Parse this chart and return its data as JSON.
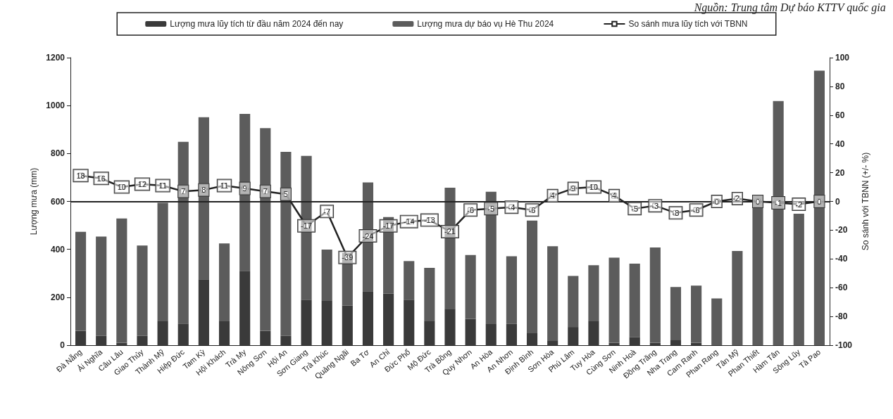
{
  "chart_data": {
    "type": "bar",
    "stacked": true,
    "annotations": [
      "Nguồn: Trung tâm Dự báo KTTV quốc gia"
    ],
    "ylabel": "Lượng mưa (mm)",
    "y2label": "So sánh với TBNN (+/- %)",
    "categories": [
      "Đà Nẵng",
      "Ải Nghĩa",
      "Câu Lâu",
      "Giao Thủy",
      "Thành Mỹ",
      "Hiệp Đức",
      "Tam Kỳ",
      "Hội Khách",
      "Trà My",
      "Nông Sơn",
      "Hội An",
      "Sơn Giang",
      "Trà Khúc",
      "Quảng Ngãi",
      "Ba Tơ",
      "An Chỉ",
      "Đức Phổ",
      "Mộ Đức",
      "Trà Bồng",
      "Quy Nhơn",
      "An Hòa",
      "An Nhơn",
      "Định Bình",
      "Sơn Hòa",
      "Phú Lâm",
      "Tuy Hòa",
      "Cùng Sơn",
      "Ninh Hoà",
      "Đồng Trăng",
      "Nha Trang",
      "Cam Ranh",
      "Phan Rang",
      "Tân Mỹ",
      "Phan Thiết",
      "Hàm Tân",
      "Sông Lũy",
      "Tà Pao"
    ],
    "series": [
      {
        "name": "Lượng mưa lũy tích từ đầu năm 2024 đến nay",
        "color": "#3a3a3a",
        "values": [
          60,
          40,
          10,
          40,
          100,
          90,
          275,
          100,
          310,
          60,
          40,
          190,
          185,
          165,
          225,
          215,
          190,
          100,
          150,
          110,
          88,
          90,
          50,
          20,
          76,
          100,
          10,
          34,
          10,
          23,
          10,
          0,
          0,
          0,
          0,
          0,
          0
        ]
      },
      {
        "name": "Lượng mưa dự báo vụ Hè Thu 2024",
        "color": "#5c5c5c",
        "values": [
          413,
          413,
          519,
          376,
          494,
          759,
          676,
          325,
          655,
          846,
          767,
          600,
          214,
          220,
          454,
          320,
          161,
          223,
          507,
          266,
          552,
          281,
          470,
          393,
          213,
          234,
          355,
          306,
          398,
          220,
          239,
          195,
          393,
          625,
          1019,
          549,
          1146
        ]
      },
      {
        "name": "So sánh mưa lũy tích với TBNN",
        "type": "line",
        "axis": "y2",
        "color": "#222222",
        "marker": "square",
        "data_labels": true,
        "values": [
          18,
          16,
          10,
          12,
          11,
          7,
          8,
          11,
          9,
          7,
          5,
          -17,
          -7,
          -39,
          -24,
          -17,
          -14,
          -13,
          -21,
          -6,
          -5,
          -4,
          -6,
          4,
          9,
          10,
          4,
          -5,
          -3,
          -8,
          -6,
          0,
          2,
          0,
          -1,
          -2,
          0
        ]
      }
    ],
    "ylim": [
      0,
      1200
    ],
    "yticks": [
      0,
      200,
      400,
      600,
      800,
      1000,
      1200
    ],
    "y2lim": [
      -100,
      100
    ],
    "y2ticks": [
      -100,
      -80,
      -60,
      -40,
      -20,
      0,
      20,
      40,
      60,
      80,
      100
    ],
    "ref_lines": [
      {
        "axis": "y2",
        "value": 0,
        "color": "#222222"
      }
    ],
    "grid": false,
    "legend": "top"
  }
}
